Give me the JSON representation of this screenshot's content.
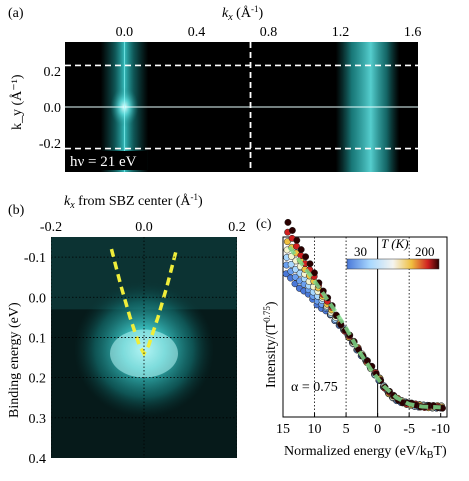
{
  "chart_data": [
    {
      "panel": "(a)",
      "type": "heatmap",
      "xlabel": "k_x (Å⁻¹)",
      "ylabel": "k_y (Å⁻¹)",
      "x_tick_labels": [
        "0.0",
        "0.4",
        "0.8",
        "1.2",
        "1.6"
      ],
      "x_ticks": [
        0.0,
        0.4,
        0.8,
        1.2,
        1.6
      ],
      "y_tick_labels": [
        "0.2",
        "0.0",
        "-0.2"
      ],
      "y_ticks": [
        0.2,
        0.0,
        -0.2
      ],
      "xlim": [
        -0.33,
        1.63
      ],
      "ylim": [
        -0.36,
        0.36
      ],
      "annotation": "hν = 21 eV",
      "intensity_regions": [
        {
          "kx_center": 0.0,
          "kx_halfwidth": 0.06,
          "level": "bright"
        },
        {
          "kx_center": 1.35,
          "kx_halfwidth": 0.08,
          "level": "bright"
        }
      ],
      "dashed_lines": {
        "ky": [
          0.23,
          -0.23
        ],
        "kx": [
          0.7
        ]
      },
      "solid_lines": {
        "ky": [
          0.0
        ],
        "kx": [
          0.0
        ]
      },
      "colormap": [
        "#000000",
        "#0a3c3c",
        "#22a8a8",
        "#aef2f2"
      ]
    },
    {
      "panel": "(b)",
      "type": "heatmap",
      "xlabel": "k_x from SBZ center (Å⁻¹)",
      "ylabel": "Binding energy (eV)",
      "x_tick_labels": [
        "-0.2",
        "0.0",
        "0.2"
      ],
      "x_ticks": [
        -0.2,
        0.0,
        0.2
      ],
      "y_tick_labels": [
        "-0.1",
        "0.0",
        "0.1",
        "0.2",
        "0.3",
        "0.4"
      ],
      "y_ticks": [
        -0.1,
        0.0,
        0.1,
        0.2,
        0.3,
        0.4
      ],
      "xlim": [
        -0.2,
        0.2
      ],
      "ylim": [
        -0.15,
        0.4
      ],
      "fitted_dispersion": {
        "style": "dashed",
        "color": "#f0ee3a",
        "k": [
          -0.07,
          -0.05,
          -0.03,
          -0.01,
          0.0,
          0.01,
          0.03,
          0.05,
          0.07
        ],
        "E": [
          -0.12,
          -0.03,
          0.05,
          0.12,
          0.14,
          0.12,
          0.05,
          -0.03,
          -0.12
        ]
      }
    },
    {
      "panel": "(c)",
      "type": "scatter",
      "xlabel": "Normalized energy (eV/k_B T)",
      "ylabel": "Intensity/(T^0.75)",
      "x_tick_labels": [
        "15",
        "10",
        "5",
        "0",
        "-5",
        "-10"
      ],
      "x_ticks": [
        15,
        10,
        5,
        0,
        -5,
        -10
      ],
      "xlim": [
        15,
        -11
      ],
      "vertical_dotted_lines": [
        10,
        5,
        -5
      ],
      "vertical_solid_line": 0,
      "annotation": "α = 0.75",
      "colorbar": {
        "label": "T (K)",
        "min_label": "30",
        "max_label": "200",
        "min": 30,
        "max": 200
      },
      "fit_curve": {
        "style": "dashed",
        "color": "#7fd98a",
        "x": [
          14,
          10,
          7,
          5,
          3,
          1,
          0,
          -1,
          -3,
          -5,
          -7,
          -10
        ],
        "y": [
          1.0,
          0.79,
          0.62,
          0.5,
          0.36,
          0.24,
          0.19,
          0.14,
          0.07,
          0.03,
          0.015,
          0.01
        ]
      }
    }
  ],
  "labels": {
    "panel_a": "(a)",
    "panel_b": "(b)",
    "panel_c": "(c)",
    "a_xlabel_main": "k",
    "a_xlabel_sub": "x",
    "a_xlabel_unit": " (Å",
    "a_xlabel_sup": "-1",
    "a_xlabel_close": ")",
    "a_ylabel": "k_y (Å⁻¹)",
    "a_hv": "hν = 21 eV",
    "b_xlabel_main": "k",
    "b_xlabel_sub": "x",
    "b_xlabel_rest": " from SBZ center (Å",
    "b_xlabel_sup": "-1",
    "b_xlabel_close": ")",
    "b_ylabel": "Binding energy (eV)",
    "c_ylabel": "Intensity/(T",
    "c_ylabel_sup": "0.75",
    "c_ylabel_close": ")",
    "c_xlabel": "Normalized energy (eV/k",
    "c_xlabel_sub": "B",
    "c_xlabel_close": "T)",
    "c_alpha": "α = 0.75",
    "c_cb_label": "T (K)",
    "c_cb_min": "30",
    "c_cb_max": "200"
  }
}
